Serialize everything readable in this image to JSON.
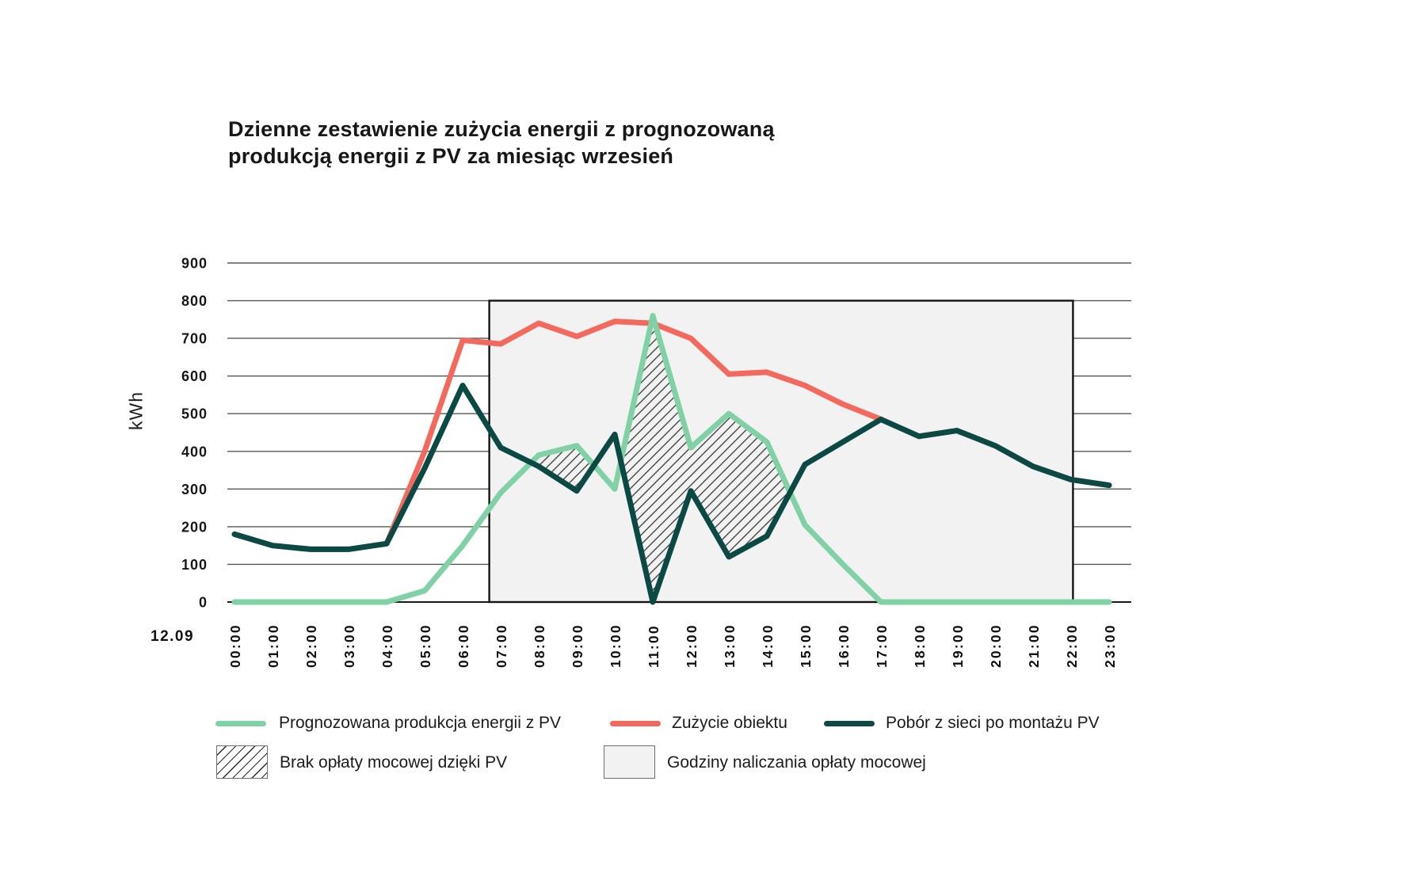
{
  "title": {
    "full": "Dzienne zestawienie zużycia energii z prognozowaną produkcją energii z PV za miesiąc wrzesień",
    "lines": [
      "Dzienne zestawienie zużycia energii z prognozowaną",
      "produkcją energii z PV za miesiąc wrzesień"
    ]
  },
  "y_axis": {
    "label": "kWh",
    "ticks": [
      0,
      100,
      200,
      300,
      400,
      500,
      600,
      700,
      800,
      900
    ]
  },
  "x_axis": {
    "date_label": "12.09",
    "ticks": [
      "00:00",
      "01:00",
      "02:00",
      "03:00",
      "04:00",
      "05:00",
      "06:00",
      "07:00",
      "08:00",
      "09:00",
      "10:00",
      "11:00",
      "12:00",
      "13:00",
      "14:00",
      "15:00",
      "16:00",
      "17:00",
      "18:00",
      "19:00",
      "20:00",
      "21:00",
      "22:00",
      "23:00"
    ]
  },
  "legend": {
    "pv_production": "Prognozowana produkcja energii z PV",
    "consumption": "Zużycie obiektu",
    "grid_draw": "Pobór z sieci po montażu PV",
    "no_fee_hatch": "Brak opłaty mocowej dzięki PV",
    "fee_window": "Godziny naliczania opłaty mocowej"
  },
  "colors": {
    "pv_production": "#80D1A3",
    "consumption": "#F4695E",
    "grid_draw": "#0B4944",
    "fee_window_fill": "#F2F2F2",
    "fee_window_border": "#141414",
    "gridline": "#565656",
    "zero_axis": "#1a1a1a",
    "hatch_line": "#1f1f1f",
    "text": "#171717"
  },
  "chart_data": {
    "type": "line",
    "title": "Dzienne zestawienie zużycia energii z prognozowaną produkcją energii z PV za miesiąc wrzesień",
    "xlabel": "12.09",
    "ylabel": "kWh",
    "ylim": [
      0,
      900
    ],
    "grid": true,
    "legend_position": "bottom",
    "x": [
      "00:00",
      "01:00",
      "02:00",
      "03:00",
      "04:00",
      "05:00",
      "06:00",
      "07:00",
      "08:00",
      "09:00",
      "10:00",
      "11:00",
      "12:00",
      "13:00",
      "14:00",
      "15:00",
      "16:00",
      "17:00",
      "18:00",
      "19:00",
      "20:00",
      "21:00",
      "22:00",
      "23:00"
    ],
    "series": [
      {
        "name": "Zużycie obiektu",
        "key": "consumption",
        "color": "#F4695E",
        "values": [
          180,
          150,
          140,
          140,
          155,
          400,
          695,
          685,
          740,
          705,
          745,
          740,
          700,
          605,
          610,
          575,
          525,
          485,
          440,
          455,
          415,
          360,
          325,
          310
        ]
      },
      {
        "name": "Prognozowana produkcja energii z PV",
        "key": "pv_production",
        "color": "#80D1A3",
        "values": [
          0,
          0,
          0,
          0,
          0,
          30,
          150,
          290,
          390,
          415,
          300,
          760,
          410,
          500,
          425,
          205,
          100,
          0,
          0,
          0,
          0,
          0,
          0,
          0
        ]
      },
      {
        "name": "Pobór z sieci po montażu PV",
        "key": "grid_draw",
        "color": "#0B4944",
        "values": [
          180,
          150,
          140,
          140,
          155,
          355,
          575,
          410,
          360,
          295,
          445,
          0,
          295,
          120,
          175,
          365,
          425,
          485,
          440,
          455,
          415,
          360,
          325,
          310
        ]
      }
    ],
    "fee_window": {
      "label": "Godziny naliczania opłaty mocowej",
      "start_hour": 6.7,
      "end_hour": 22.05,
      "y_top_kwh": 800,
      "fill": "#F2F2F2"
    },
    "hatch_regions": {
      "label": "Brak opłaty mocowej dzięki PV",
      "rule": "area where PV production is above grid draw",
      "upper_series": "pv_production",
      "lower_series": "grid_draw"
    }
  }
}
